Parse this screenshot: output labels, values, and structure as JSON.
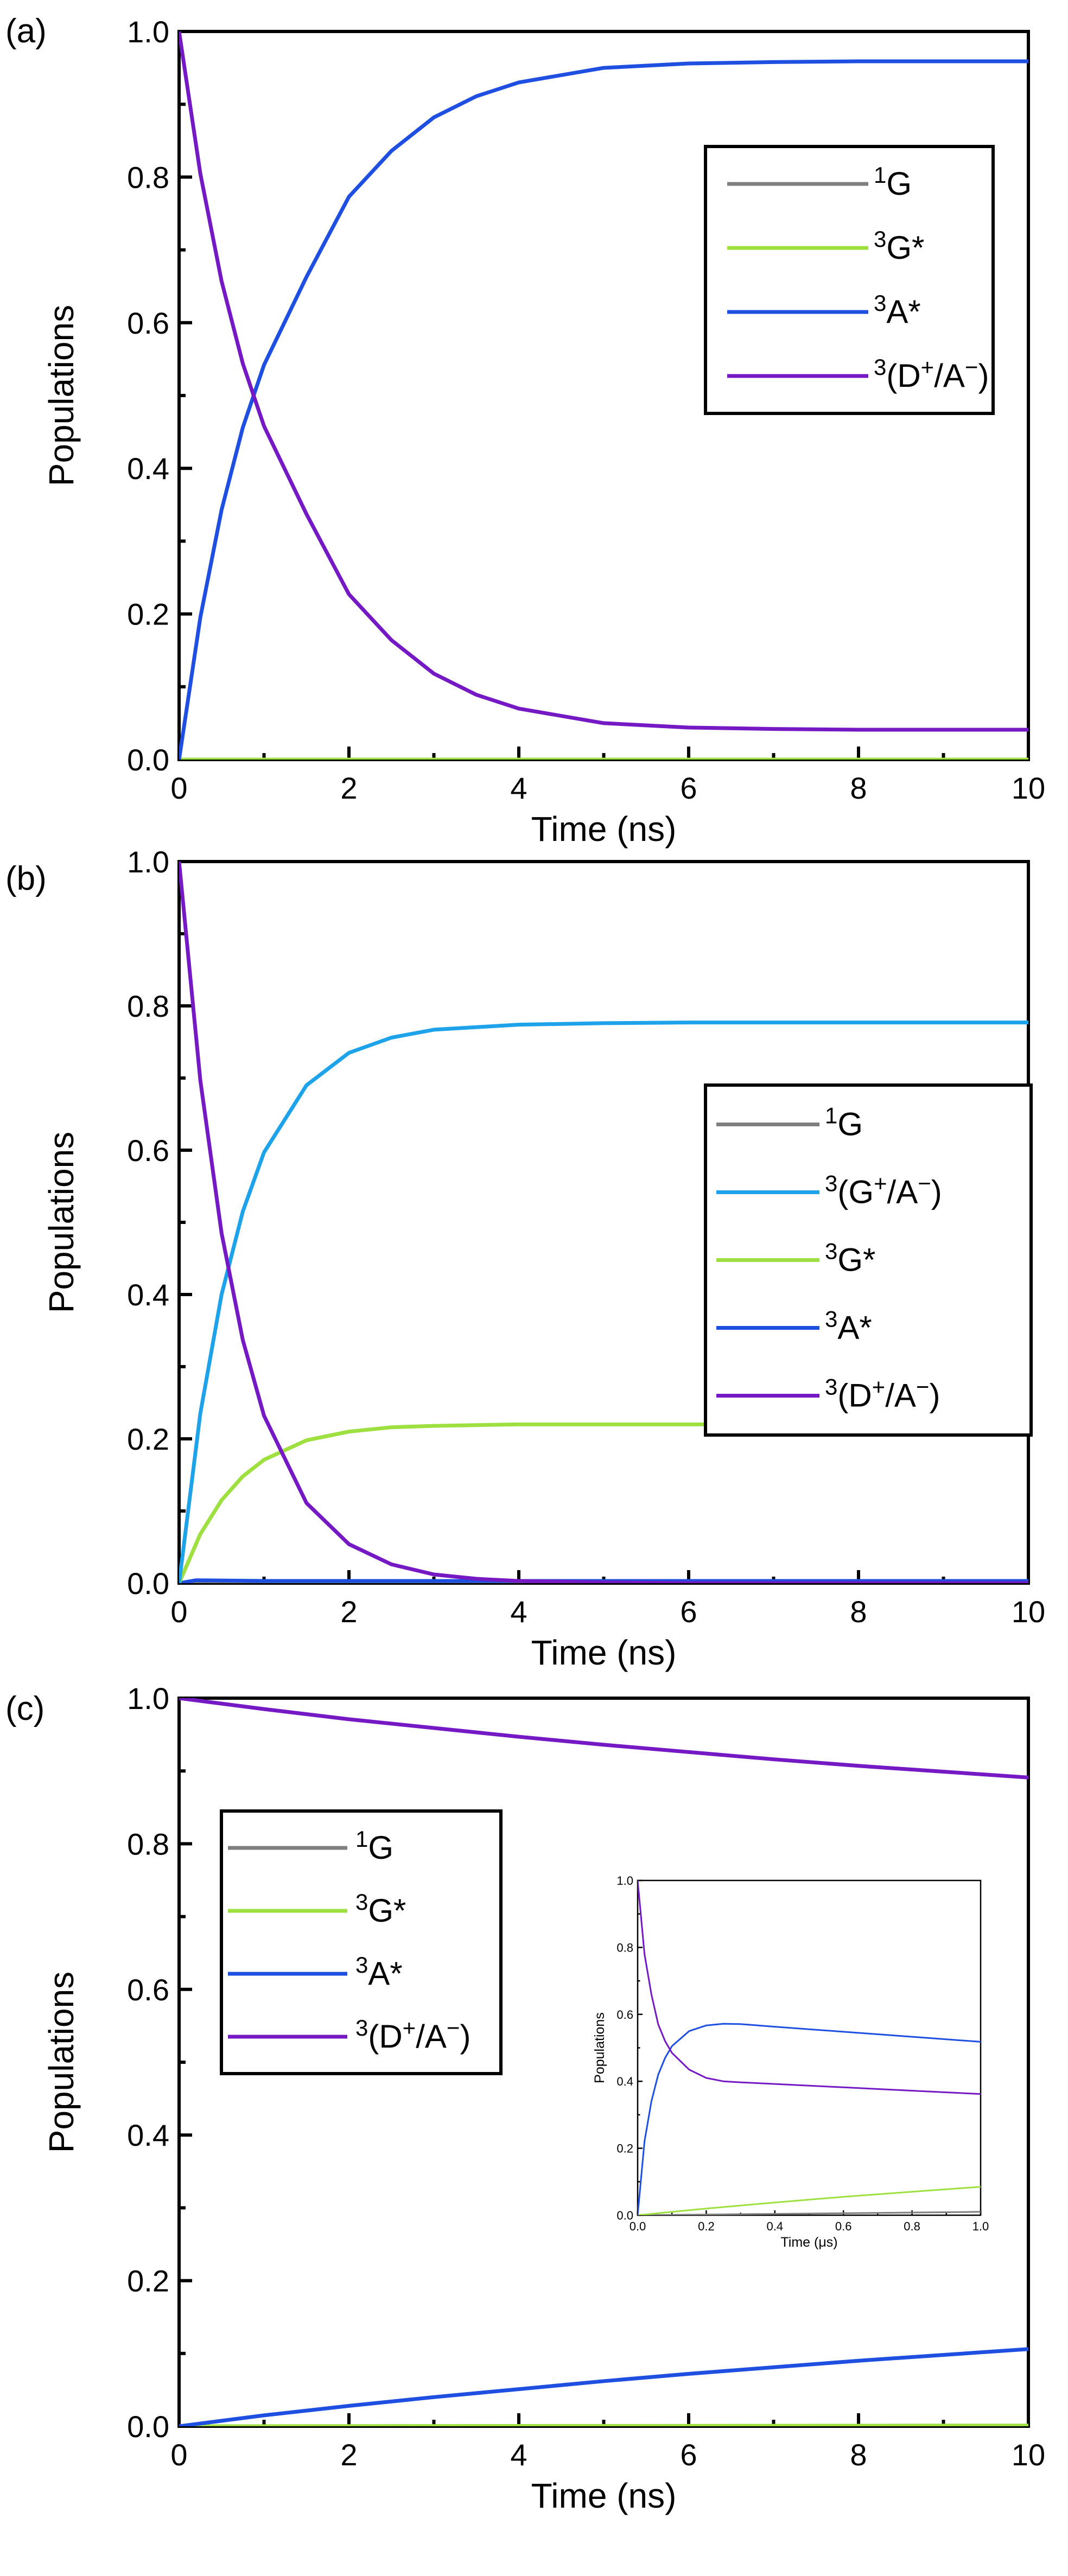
{
  "colors": {
    "1G": "#7f7f7f",
    "3G*": "#9ee040",
    "3A*": "#1f4fe0",
    "3(D+/A-)": "#7519c5",
    "3(G+/A-)": "#1ea3ea"
  },
  "chart_data": [
    {
      "type": "line",
      "panel_label": "(a)",
      "xlabel": "Time (ns)",
      "ylabel": "Populations",
      "xlim": [
        0,
        10
      ],
      "ylim": [
        0,
        1
      ],
      "xticks": [
        0,
        2,
        4,
        6,
        8,
        10
      ],
      "yticks": [
        0.0,
        0.2,
        0.4,
        0.6,
        0.8,
        1.0
      ],
      "x_tick_labels": [
        "0",
        "2",
        "4",
        "6",
        "8",
        "10"
      ],
      "y_tick_labels": [
        "0.0",
        "0.2",
        "0.4",
        "0.6",
        "0.8",
        "1.0"
      ],
      "legend": {
        "location": "top-right",
        "entries": [
          {
            "key": "1G",
            "sup": "1",
            "base": "G",
            "rest": ""
          },
          {
            "key": "3G*",
            "sup": "3",
            "base": "G*",
            "rest": ""
          },
          {
            "key": "3A*",
            "sup": "3",
            "base": "A*",
            "rest": ""
          },
          {
            "key": "3(D+/A-)",
            "sup": "3",
            "base": "(D",
            "sup2": "+",
            "mid": "/A",
            "sup3": "−",
            "rest": ")"
          }
        ]
      },
      "series": [
        {
          "name": "1G",
          "x": [
            0,
            10
          ],
          "y": [
            0,
            0
          ]
        },
        {
          "name": "3G*",
          "x": [
            0,
            10
          ],
          "y": [
            0,
            0
          ]
        },
        {
          "name": "3A*",
          "x": [
            0,
            0.25,
            0.5,
            0.75,
            1,
            1.5,
            2,
            2.5,
            3,
            3.5,
            4,
            5,
            6,
            7,
            8,
            9,
            10
          ],
          "y": [
            0,
            0.195,
            0.343,
            0.456,
            0.542,
            0.663,
            0.773,
            0.836,
            0.882,
            0.911,
            0.93,
            0.95,
            0.956,
            0.958,
            0.959,
            0.959,
            0.959
          ]
        },
        {
          "name": "3(D+/A-)",
          "x": [
            0,
            0.25,
            0.5,
            0.75,
            1,
            1.5,
            2,
            2.5,
            3,
            3.5,
            4,
            5,
            6,
            7,
            8,
            9,
            10
          ],
          "y": [
            1,
            0.805,
            0.657,
            0.544,
            0.458,
            0.337,
            0.227,
            0.164,
            0.118,
            0.089,
            0.07,
            0.05,
            0.044,
            0.042,
            0.041,
            0.041,
            0.041
          ]
        }
      ]
    },
    {
      "type": "line",
      "panel_label": "(b)",
      "xlabel": "Time (ns)",
      "ylabel": "Populations",
      "xlim": [
        0,
        10
      ],
      "ylim": [
        0,
        1
      ],
      "xticks": [
        0,
        2,
        4,
        6,
        8,
        10
      ],
      "yticks": [
        0.0,
        0.2,
        0.4,
        0.6,
        0.8,
        1.0
      ],
      "x_tick_labels": [
        "0",
        "2",
        "4",
        "6",
        "8",
        "10"
      ],
      "y_tick_labels": [
        "0.0",
        "0.2",
        "0.4",
        "0.6",
        "0.8",
        "1.0"
      ],
      "legend": {
        "location": "right",
        "entries": [
          {
            "key": "1G",
            "sup": "1",
            "base": "G",
            "rest": ""
          },
          {
            "key": "3(G+/A-)",
            "sup": "3",
            "base": "(G",
            "sup2": "+",
            "mid": "/A",
            "sup3": "−",
            "rest": ")"
          },
          {
            "key": "3G*",
            "sup": "3",
            "base": "G*",
            "rest": ""
          },
          {
            "key": "3A*",
            "sup": "3",
            "base": "A*",
            "rest": ""
          },
          {
            "key": "3(D+/A-)",
            "sup": "3",
            "base": "(D",
            "sup2": "+",
            "mid": "/A",
            "sup3": "−",
            "rest": ")"
          }
        ]
      },
      "series": [
        {
          "name": "1G",
          "x": [
            0,
            10
          ],
          "y": [
            0,
            0
          ]
        },
        {
          "name": "3A*",
          "x": [
            0,
            0.2,
            1,
            10
          ],
          "y": [
            0,
            0.004,
            0.003,
            0.003
          ]
        },
        {
          "name": "3G*",
          "x": [
            0,
            0.25,
            0.5,
            0.75,
            1,
            1.5,
            2,
            2.5,
            3,
            4,
            5,
            6,
            8,
            10
          ],
          "y": [
            0,
            0.068,
            0.115,
            0.148,
            0.171,
            0.198,
            0.21,
            0.216,
            0.218,
            0.22,
            0.22,
            0.22,
            0.22,
            0.22
          ]
        },
        {
          "name": "3(G+/A-)",
          "x": [
            0,
            0.25,
            0.5,
            0.75,
            1,
            1.5,
            2,
            2.5,
            3,
            4,
            5,
            6,
            8,
            10
          ],
          "y": [
            0,
            0.235,
            0.4,
            0.515,
            0.597,
            0.69,
            0.735,
            0.756,
            0.767,
            0.774,
            0.776,
            0.777,
            0.777,
            0.777
          ]
        },
        {
          "name": "3(D+/A-)",
          "x": [
            0,
            0.25,
            0.5,
            0.75,
            1,
            1.5,
            2,
            2.5,
            3,
            3.5,
            4,
            5,
            6,
            8,
            10
          ],
          "y": [
            1,
            0.697,
            0.485,
            0.337,
            0.232,
            0.111,
            0.054,
            0.026,
            0.012,
            0.006,
            0.003,
            0.001,
            0,
            0,
            0
          ]
        }
      ]
    },
    {
      "type": "line",
      "panel_label": "(c)",
      "xlabel": "Time (ns)",
      "ylabel": "Populations",
      "xlim": [
        0,
        10
      ],
      "ylim": [
        0,
        1
      ],
      "xticks": [
        0,
        2,
        4,
        6,
        8,
        10
      ],
      "yticks": [
        0.0,
        0.2,
        0.4,
        0.6,
        0.8,
        1.0
      ],
      "x_tick_labels": [
        "0",
        "2",
        "4",
        "6",
        "8",
        "10"
      ],
      "y_tick_labels": [
        "0.0",
        "0.2",
        "0.4",
        "0.6",
        "0.8",
        "1.0"
      ],
      "legend": {
        "location": "top-left",
        "entries": [
          {
            "key": "1G",
            "sup": "1",
            "base": "G",
            "rest": ""
          },
          {
            "key": "3G*",
            "sup": "3",
            "base": "G*",
            "rest": ""
          },
          {
            "key": "3A*",
            "sup": "3",
            "base": "A*",
            "rest": ""
          },
          {
            "key": "3(D+/A-)",
            "sup": "3",
            "base": "(D",
            "sup2": "+",
            "mid": "/A",
            "sup3": "−",
            "rest": ")"
          }
        ]
      },
      "series": [
        {
          "name": "1G",
          "x": [
            0,
            10
          ],
          "y": [
            0,
            0
          ]
        },
        {
          "name": "3G*",
          "x": [
            0,
            10
          ],
          "y": [
            0,
            0.001
          ]
        },
        {
          "name": "3A*",
          "x": [
            0,
            1,
            2,
            3,
            4,
            5,
            6,
            7,
            8,
            9,
            10
          ],
          "y": [
            0,
            0.015,
            0.028,
            0.04,
            0.051,
            0.062,
            0.072,
            0.081,
            0.09,
            0.098,
            0.106
          ]
        },
        {
          "name": "3(D+/A-)",
          "x": [
            0,
            1,
            2,
            3,
            4,
            5,
            6,
            7,
            8,
            9,
            10
          ],
          "y": [
            1,
            0.985,
            0.971,
            0.959,
            0.947,
            0.936,
            0.926,
            0.916,
            0.907,
            0.899,
            0.891
          ]
        }
      ],
      "inset": {
        "xlabel": "Time (μs)",
        "ylabel": "Populations",
        "xlim": [
          0,
          1
        ],
        "ylim": [
          0,
          1
        ],
        "xticks": [
          0,
          0.2,
          0.4,
          0.6,
          0.8,
          1.0
        ],
        "yticks": [
          0.0,
          0.2,
          0.4,
          0.6,
          0.8,
          1.0
        ],
        "x_tick_labels": [
          "0.0",
          "0.2",
          "0.4",
          "0.6",
          "0.8",
          "1.0"
        ],
        "y_tick_labels": [
          "0.0",
          "0.2",
          "0.4",
          "0.6",
          "0.8",
          "1.0"
        ],
        "series": [
          {
            "name": "1G",
            "x": [
              0,
              1
            ],
            "y": [
              0,
              0.01
            ]
          },
          {
            "name": "3G*",
            "x": [
              0,
              0.2,
              0.4,
              0.6,
              0.8,
              1.0
            ],
            "y": [
              0,
              0.02,
              0.038,
              0.055,
              0.07,
              0.085
            ]
          },
          {
            "name": "3A*",
            "x": [
              0,
              0.02,
              0.04,
              0.06,
              0.08,
              0.1,
              0.15,
              0.2,
              0.25,
              0.3,
              0.4,
              0.6,
              0.8,
              1.0
            ],
            "y": [
              0,
              0.22,
              0.34,
              0.42,
              0.47,
              0.505,
              0.55,
              0.567,
              0.572,
              0.571,
              0.563,
              0.548,
              0.533,
              0.518
            ]
          },
          {
            "name": "3(D+/A-)",
            "x": [
              0,
              0.02,
              0.04,
              0.06,
              0.08,
              0.1,
              0.15,
              0.2,
              0.25,
              0.3,
              0.4,
              0.6,
              0.8,
              1.0
            ],
            "y": [
              1,
              0.78,
              0.66,
              0.57,
              0.52,
              0.485,
              0.435,
              0.41,
              0.4,
              0.397,
              0.392,
              0.382,
              0.372,
              0.362
            ]
          }
        ]
      }
    }
  ]
}
